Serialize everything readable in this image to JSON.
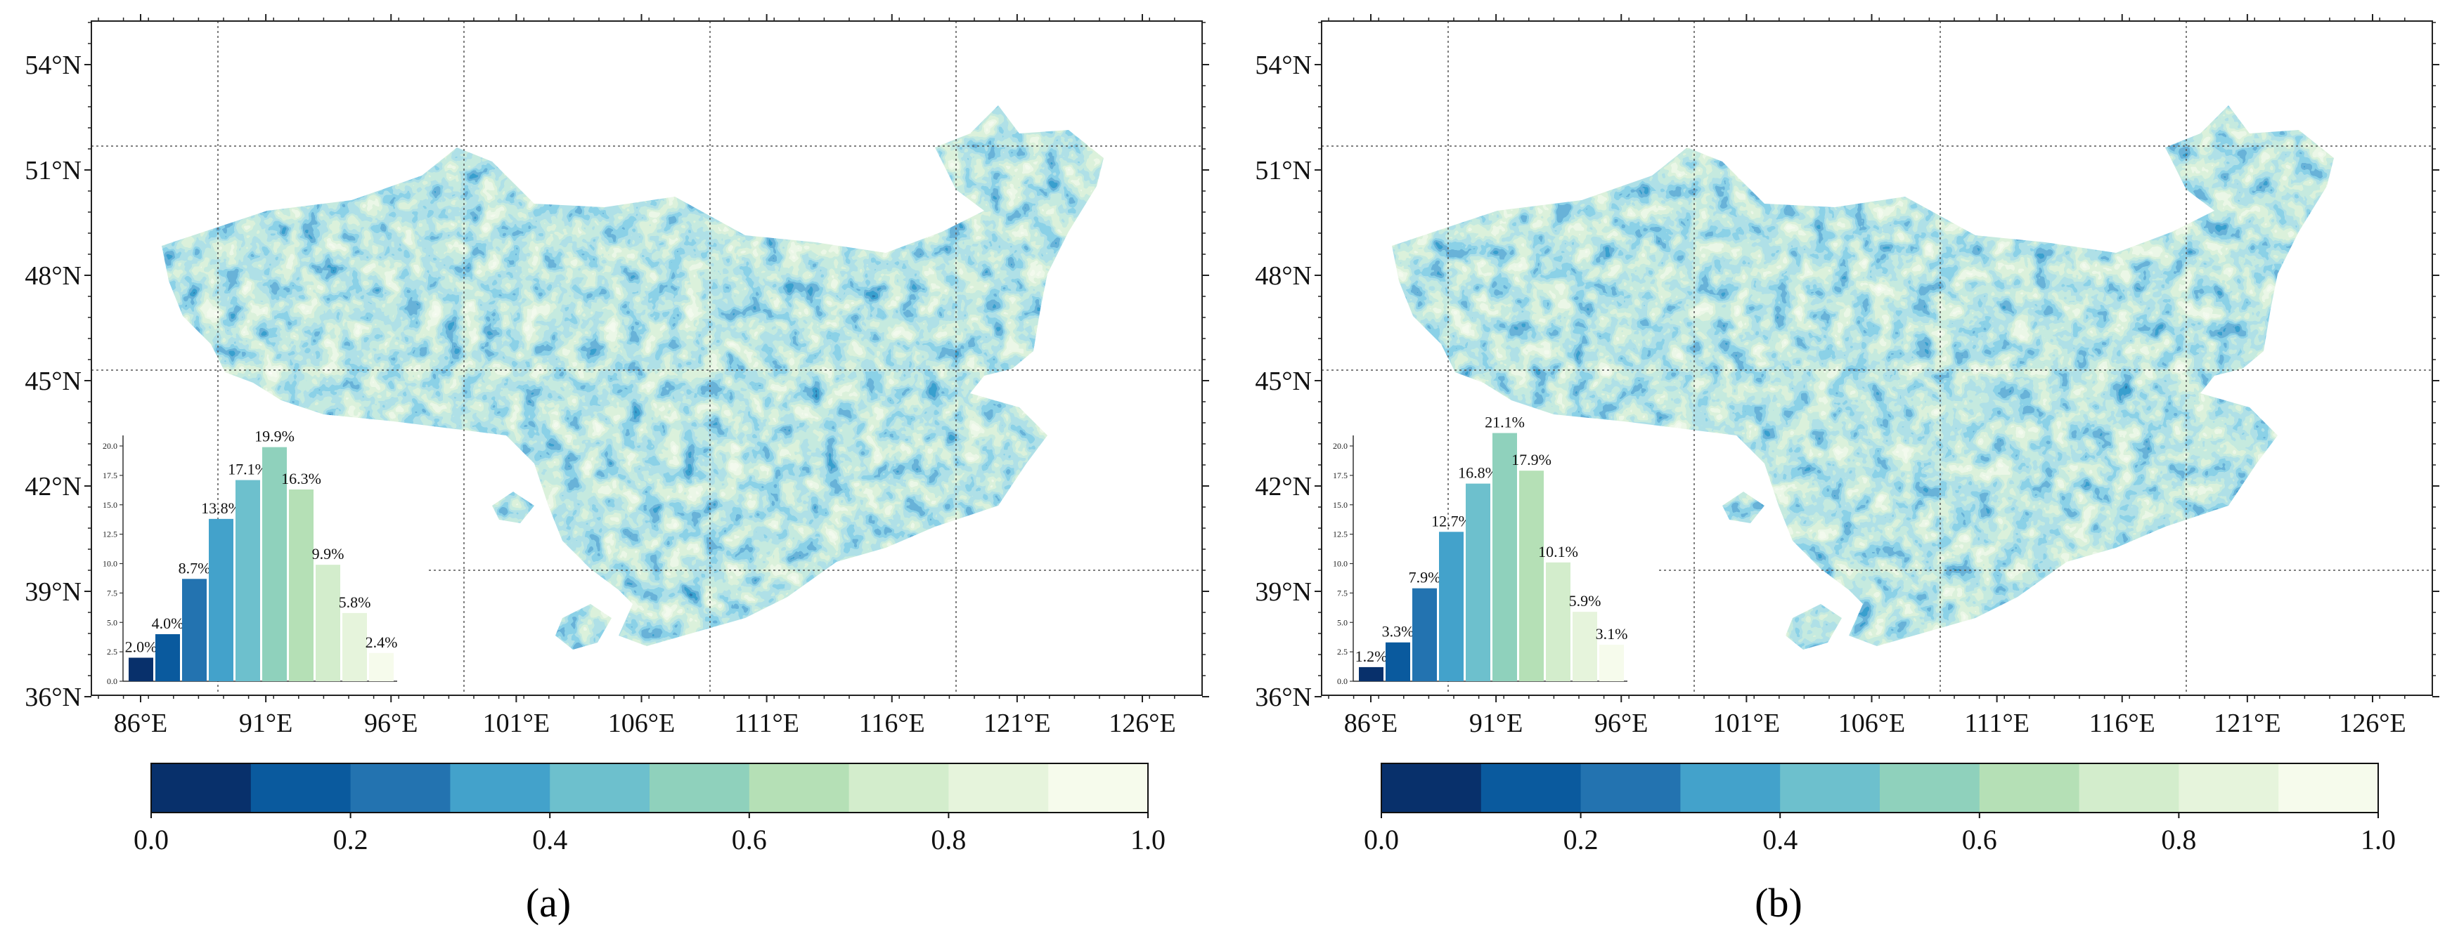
{
  "chart_data": [
    {
      "type": "map",
      "panel_label": "(a)",
      "lat_ticks": [
        "54°N",
        "51°N",
        "48°N",
        "45°N",
        "42°N",
        "39°N",
        "36°N"
      ],
      "lon_ticks": [
        "86°E",
        "91°E",
        "96°E",
        "101°E",
        "106°E",
        "111°E",
        "116°E",
        "121°E",
        "126°E"
      ],
      "colorbar_ticks": [
        "0.0",
        "0.2",
        "0.4",
        "0.6",
        "0.8",
        "1.0"
      ],
      "inset": {
        "type": "bar",
        "yticks": [
          "0.0",
          "2.5",
          "5.0",
          "7.5",
          "10.0",
          "12.5",
          "15.0",
          "17.5",
          "20.0"
        ],
        "ylim": [
          0,
          20
        ],
        "values": [
          2.0,
          4.0,
          8.7,
          13.8,
          17.1,
          19.9,
          16.3,
          9.9,
          5.8,
          2.4
        ],
        "labels": [
          "2.0%",
          "4.0%",
          "8.7%",
          "13.8%",
          "17.1%",
          "19.9%",
          "16.3%",
          "9.9%",
          "5.8%",
          "2.4%"
        ]
      }
    },
    {
      "type": "map",
      "panel_label": "(b)",
      "lat_ticks": [
        "54°N",
        "51°N",
        "48°N",
        "45°N",
        "42°N",
        "39°N",
        "36°N"
      ],
      "lon_ticks": [
        "86°E",
        "91°E",
        "96°E",
        "101°E",
        "106°E",
        "111°E",
        "116°E",
        "121°E",
        "126°E"
      ],
      "colorbar_ticks": [
        "0.0",
        "0.2",
        "0.4",
        "0.6",
        "0.8",
        "1.0"
      ],
      "inset": {
        "type": "bar",
        "yticks": [
          "0.0",
          "2.5",
          "5.0",
          "7.5",
          "10.0",
          "12.5",
          "15.0",
          "17.5",
          "20.0"
        ],
        "ylim": [
          0,
          20
        ],
        "values": [
          1.2,
          3.3,
          7.9,
          12.7,
          16.8,
          21.1,
          17.9,
          10.1,
          5.9,
          3.1
        ],
        "labels": [
          "1.2%",
          "3.3%",
          "7.9%",
          "12.7%",
          "16.8%",
          "21.1%",
          "17.9%",
          "10.1%",
          "5.9%",
          "3.1%"
        ]
      }
    }
  ],
  "colormap": [
    "#08306b",
    "#0a5a9e",
    "#2373b0",
    "#43a2cb",
    "#6dc0cd",
    "#8fd1bc",
    "#b5e0b6",
    "#d3edcc",
    "#e6f4dc",
    "#f6fbec"
  ]
}
